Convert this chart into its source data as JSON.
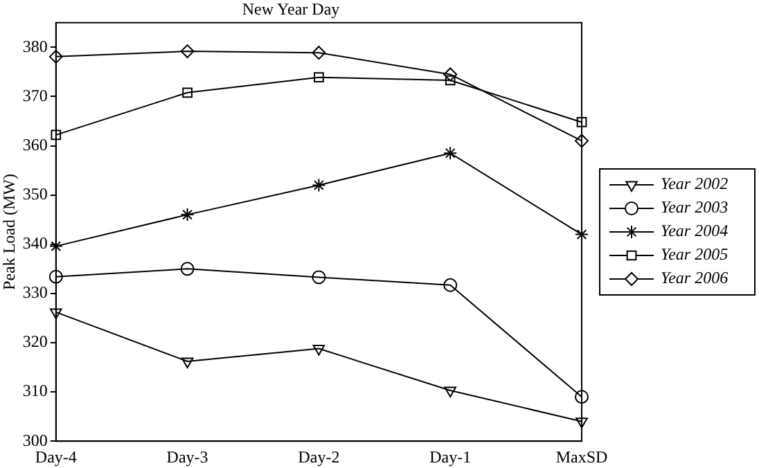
{
  "chart_data": {
    "type": "line",
    "title": "New Year Day",
    "ylabel": "Peak Load (MW)",
    "categories": [
      "Day-4",
      "Day-3",
      "Day-2",
      "Day-1",
      "MaxSD"
    ],
    "ylim": [
      300,
      385
    ],
    "yticks": [
      300,
      310,
      320,
      330,
      340,
      350,
      360,
      370,
      380
    ],
    "grid": false,
    "legend": "right",
    "line_style": "solid",
    "series": [
      {
        "name": "Year 2002",
        "color": "#000000",
        "marker": "triangle",
        "values": [
          326.2,
          316.2,
          318.8,
          310.3,
          304
        ]
      },
      {
        "name": "Year 2003",
        "color": "#000000",
        "marker": "circle",
        "values": [
          333.4,
          335,
          333.3,
          331.7,
          309
        ]
      },
      {
        "name": "Year 2004",
        "color": "#000000",
        "marker": "cross",
        "values": [
          339.6,
          346,
          352,
          358.5,
          342
        ]
      },
      {
        "name": "Year 2005",
        "color": "#000000",
        "marker": "square",
        "values": [
          362.2,
          370.8,
          373.9,
          373.3,
          364.8
        ]
      },
      {
        "name": "Year 2006",
        "color": "#000000",
        "marker": "diamond",
        "values": [
          378.1,
          379.2,
          378.9,
          374.5,
          361
        ]
      }
    ]
  }
}
